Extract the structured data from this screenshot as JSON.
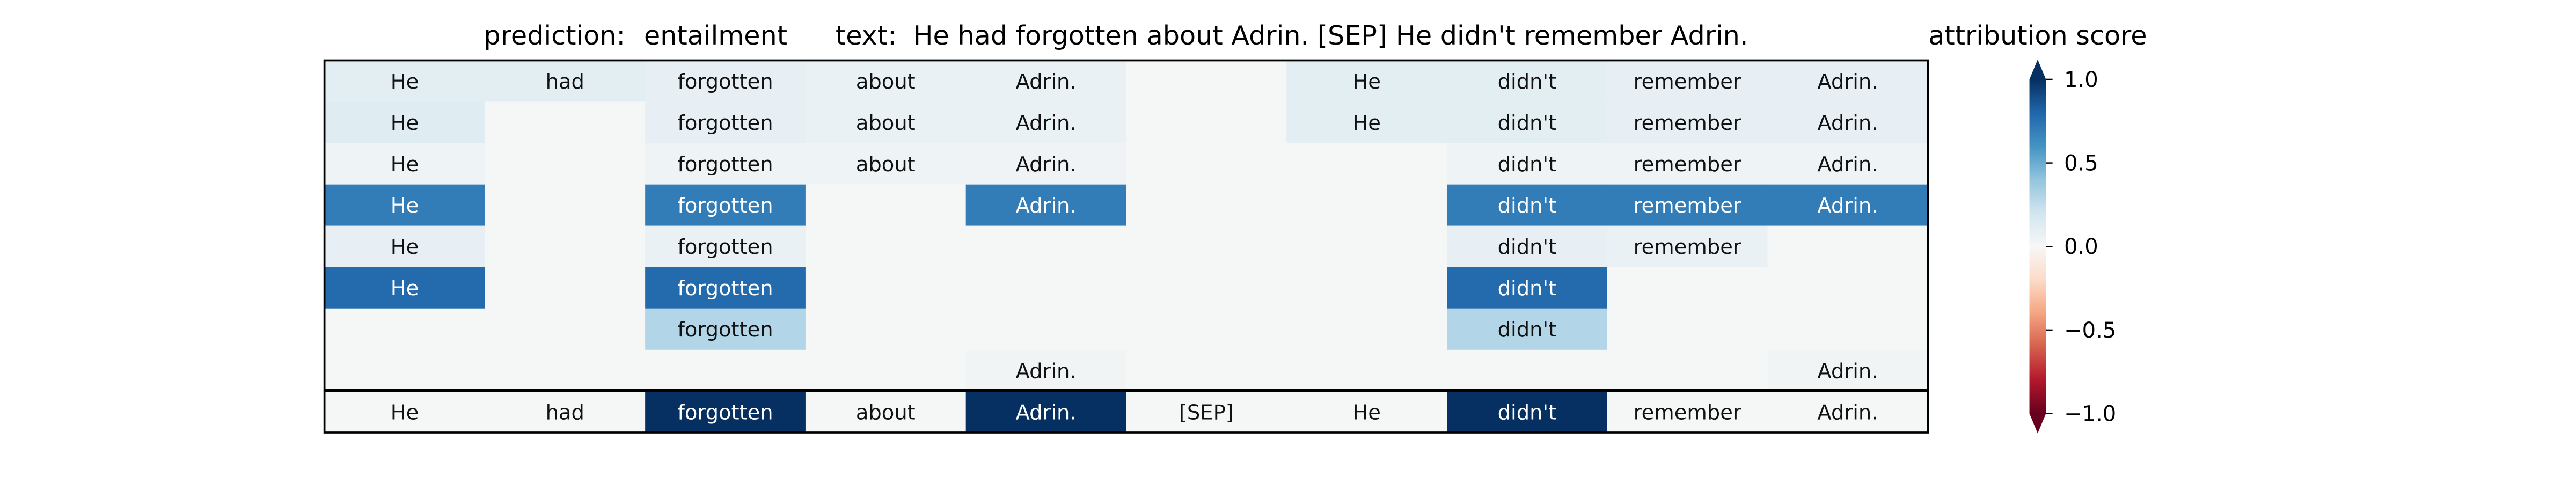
{
  "header": {
    "prediction_label": "prediction:",
    "prediction_value": "entailment",
    "text_label": "text:",
    "text_value": "He had forgotten about Adrin. [SEP] He didn't remember Adrin."
  },
  "chart_data": {
    "type": "heatmap",
    "tokens": [
      "He",
      "had",
      "forgotten",
      "about",
      "Adrin.",
      "[SEP]",
      "He",
      "didn't",
      "remember",
      "Adrin."
    ],
    "rows": [
      {
        "values": [
          0.1,
          0.1,
          0.08,
          0.06,
          0.06,
          0.0,
          0.1,
          0.1,
          0.08,
          0.08
        ],
        "labels": [
          "He",
          "had",
          "forgotten",
          "about",
          "Adrin.",
          "",
          "He",
          "didn't",
          "remember",
          "Adrin."
        ]
      },
      {
        "values": [
          0.12,
          0.0,
          0.08,
          0.06,
          0.06,
          0.0,
          0.1,
          0.1,
          0.08,
          0.08
        ],
        "labels": [
          "He",
          "",
          "forgotten",
          "about",
          "Adrin.",
          "",
          "He",
          "didn't",
          "remember",
          "Adrin."
        ]
      },
      {
        "values": [
          0.04,
          0.0,
          0.04,
          0.04,
          0.03,
          0.0,
          0.0,
          0.04,
          0.04,
          0.04
        ],
        "labels": [
          "He",
          "",
          "forgotten",
          "about",
          "Adrin.",
          "",
          "",
          "didn't",
          "remember",
          "Adrin."
        ]
      },
      {
        "values": [
          0.7,
          0.0,
          0.7,
          0.0,
          0.7,
          0.0,
          0.0,
          0.7,
          0.7,
          0.7
        ],
        "labels": [
          "He",
          "",
          "forgotten",
          "",
          "Adrin.",
          "",
          "",
          "didn't",
          "remember",
          "Adrin."
        ]
      },
      {
        "values": [
          0.08,
          0.0,
          0.06,
          0.0,
          0.0,
          0.0,
          0.0,
          0.08,
          0.06,
          0.0
        ],
        "labels": [
          "He",
          "",
          "forgotten",
          "",
          "",
          "",
          "",
          "didn't",
          "remember",
          ""
        ]
      },
      {
        "values": [
          0.78,
          0.0,
          0.78,
          0.0,
          0.0,
          0.0,
          0.0,
          0.78,
          0.0,
          0.0
        ],
        "labels": [
          "He",
          "",
          "forgotten",
          "",
          "",
          "",
          "",
          "didn't",
          "",
          ""
        ]
      },
      {
        "values": [
          0.0,
          0.0,
          0.3,
          0.0,
          0.0,
          0.0,
          0.0,
          0.3,
          0.0,
          0.0
        ],
        "labels": [
          "",
          "",
          "forgotten",
          "",
          "",
          "",
          "",
          "didn't",
          "",
          ""
        ]
      },
      {
        "values": [
          0.0,
          0.0,
          0.0,
          0.0,
          0.02,
          0.0,
          0.0,
          0.0,
          0.0,
          0.02
        ],
        "labels": [
          "",
          "",
          "",
          "",
          "Adrin.",
          "",
          "",
          "",
          "",
          "Adrin."
        ]
      }
    ],
    "summary_row": {
      "values": [
        0.0,
        0.0,
        1.0,
        0.0,
        1.0,
        0.0,
        0.0,
        1.0,
        0.0,
        0.0
      ],
      "labels": [
        "He",
        "had",
        "forgotten",
        "about",
        "Adrin.",
        "[SEP]",
        "He",
        "didn't",
        "remember",
        "Adrin."
      ]
    },
    "colorbar": {
      "title": "attribution score",
      "range": [
        -1.0,
        1.0
      ],
      "ticks": [
        1.0,
        0.5,
        0.0,
        -0.5,
        -1.0
      ],
      "tick_labels": [
        "1.0",
        "0.5",
        "0.0",
        "−0.5",
        "−1.0"
      ],
      "colormap": "RdBu"
    }
  }
}
